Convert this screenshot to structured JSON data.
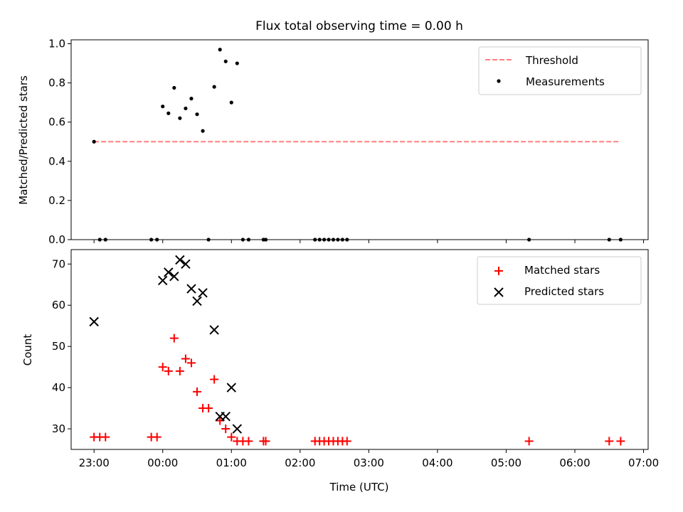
{
  "title": "Flux total observing time = 0.00 h",
  "chart_data": [
    {
      "type": "scatter",
      "panel": "top",
      "title": "Flux total observing time = 0.00 h",
      "xlabel": "",
      "ylabel": "Matched/Predicted stars",
      "xlim": [
        "22:40",
        "07:04"
      ],
      "ylim": [
        0,
        1.02
      ],
      "yticks": [
        "0.0",
        "0.2",
        "0.4",
        "0.6",
        "0.8",
        "1.0"
      ],
      "grid": false,
      "legend": "top-right",
      "series": [
        {
          "name": "Threshold",
          "kind": "dashed-line",
          "color": "#ff7f7f",
          "x": [
            "23:00",
            "06:40"
          ],
          "y": [
            0.5,
            0.5
          ]
        },
        {
          "name": "Measurements",
          "kind": "points",
          "color": "#000000",
          "x": [
            "23:00",
            "23:05",
            "23:10",
            "23:50",
            "23:55",
            "00:00",
            "00:05",
            "00:10",
            "00:15",
            "00:20",
            "00:25",
            "00:30",
            "00:35",
            "00:40",
            "00:45",
            "00:50",
            "00:55",
            "01:00",
            "01:05",
            "01:10",
            "01:15",
            "01:28",
            "01:30",
            "02:13",
            "02:17",
            "02:21",
            "02:25",
            "02:29",
            "02:33",
            "02:37",
            "02:41",
            "05:20",
            "06:30",
            "06:40"
          ],
          "y": [
            0.5,
            0.0,
            0.0,
            0.0,
            0.0,
            0.68,
            0.645,
            0.775,
            0.62,
            0.67,
            0.72,
            0.64,
            0.555,
            0.0,
            0.78,
            0.97,
            0.91,
            0.7,
            0.9,
            0.0,
            0.0,
            0.0,
            0.0,
            0.0,
            0.0,
            0.0,
            0.0,
            0.0,
            0.0,
            0.0,
            0.0,
            0.0,
            0.0,
            0.0
          ]
        }
      ]
    },
    {
      "type": "scatter",
      "panel": "bottom",
      "xlabel": "Time (UTC)",
      "ylabel": "Count",
      "xlim": [
        "22:40",
        "07:04"
      ],
      "ylim": [
        25,
        73.5
      ],
      "xticks": [
        "23:00",
        "00:00",
        "01:00",
        "02:00",
        "03:00",
        "04:00",
        "05:00",
        "06:00",
        "07:00"
      ],
      "yticks": [
        "30",
        "40",
        "50",
        "60",
        "70"
      ],
      "grid": false,
      "legend": "top-right",
      "series": [
        {
          "name": "Matched stars",
          "marker": "plus",
          "color": "#ff0000",
          "x": [
            "23:00",
            "23:05",
            "23:10",
            "23:50",
            "23:55",
            "00:00",
            "00:05",
            "00:10",
            "00:15",
            "00:20",
            "00:25",
            "00:30",
            "00:35",
            "00:40",
            "00:45",
            "00:50",
            "00:55",
            "01:00",
            "01:05",
            "01:10",
            "01:15",
            "01:28",
            "01:30",
            "02:13",
            "02:17",
            "02:21",
            "02:25",
            "02:29",
            "02:33",
            "02:37",
            "02:41",
            "05:20",
            "06:30",
            "06:40"
          ],
          "y": [
            28,
            28,
            28,
            28,
            28,
            45,
            44,
            52,
            44,
            47,
            46,
            39,
            35,
            35,
            42,
            32,
            30,
            28,
            27,
            27,
            27,
            27,
            27,
            27,
            27,
            27,
            27,
            27,
            27,
            27,
            27,
            27,
            27,
            27
          ]
        },
        {
          "name": "Predicted stars",
          "marker": "x",
          "color": "#000000",
          "x": [
            "23:00",
            "00:00",
            "00:05",
            "00:10",
            "00:15",
            "00:20",
            "00:25",
            "00:30",
            "00:35",
            "00:45",
            "00:50",
            "00:55",
            "01:00",
            "01:05"
          ],
          "y": [
            56,
            66,
            68,
            67,
            71,
            70,
            64,
            61,
            63,
            54,
            33,
            33,
            40,
            30
          ]
        }
      ]
    }
  ]
}
